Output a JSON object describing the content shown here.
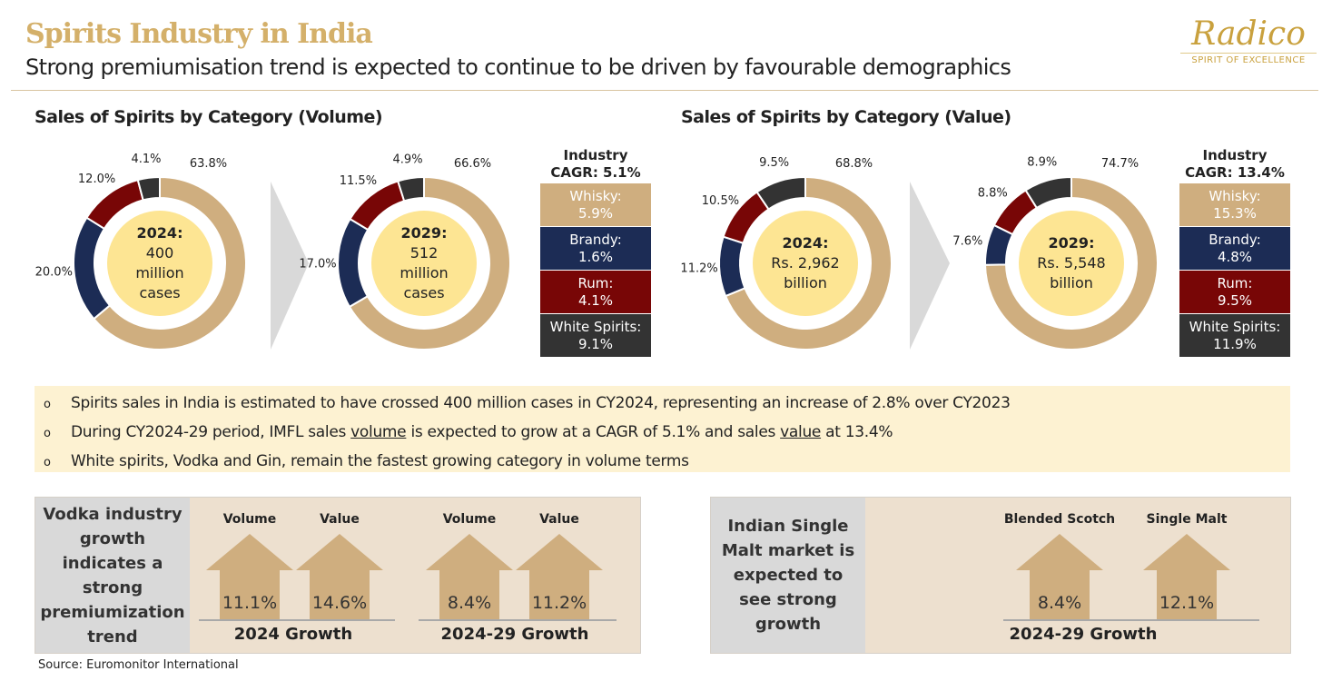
{
  "header": {
    "title": "Spirits Industry in India",
    "subtitle": "Strong premiumisation trend is expected to continue to be driven by favourable demographics",
    "logo_brand": "Radico",
    "logo_tagline": "SPIRIT OF EXCELLENCE"
  },
  "colors": {
    "whisky": "#cfae7f",
    "brandy": "#1c2c55",
    "rum": "#780606",
    "white_spirits": "#333333",
    "center": "#fde593",
    "accent": "#d4b06a"
  },
  "chart_data": [
    {
      "type": "pie",
      "variant": "donut",
      "title": "Sales of Spirits by Category (Volume)",
      "center": {
        "year": "2024:",
        "line1": "400",
        "line2": "million",
        "line3": "cases"
      },
      "categories": [
        "Whisky",
        "Brandy",
        "Rum",
        "White Spirits"
      ],
      "values": [
        63.8,
        20.0,
        12.0,
        4.1
      ],
      "labels": [
        "63.8%",
        "20.0%",
        "12.0%",
        "4.1%"
      ]
    },
    {
      "type": "pie",
      "variant": "donut",
      "title": "Sales of Spirits by Category (Volume)",
      "center": {
        "year": "2029:",
        "line1": "512",
        "line2": "million",
        "line3": "cases"
      },
      "categories": [
        "Whisky",
        "Brandy",
        "Rum",
        "White Spirits"
      ],
      "values": [
        66.6,
        17.0,
        11.5,
        4.9
      ],
      "labels": [
        "66.6%",
        "17.0%",
        "11.5%",
        "4.9%"
      ]
    },
    {
      "type": "pie",
      "variant": "donut",
      "title": "Sales of Spirits by Category (Value)",
      "center": {
        "year": "2024:",
        "line1": "Rs. 2,962",
        "line2": "billion",
        "line3": ""
      },
      "categories": [
        "Whisky",
        "Brandy",
        "Rum",
        "White Spirits"
      ],
      "values": [
        68.8,
        11.2,
        10.5,
        9.5
      ],
      "labels": [
        "68.8%",
        "11.2%",
        "10.5%",
        "9.5%"
      ]
    },
    {
      "type": "pie",
      "variant": "donut",
      "title": "Sales of Spirits by Category (Value)",
      "center": {
        "year": "2029:",
        "line1": "Rs. 5,548",
        "line2": "billion",
        "line3": ""
      },
      "categories": [
        "Whisky",
        "Brandy",
        "Rum",
        "White Spirits"
      ],
      "values": [
        74.7,
        7.6,
        8.8,
        8.9
      ],
      "labels": [
        "74.7%",
        "7.6%",
        "8.8%",
        "8.9%"
      ]
    }
  ],
  "volume": {
    "title": "Sales of Spirits by Category (Volume)",
    "legend": {
      "header1": "Industry",
      "header2": "CAGR: 5.1%",
      "items": [
        [
          "Whisky:",
          "5.9%"
        ],
        [
          "Brandy:",
          "1.6%"
        ],
        [
          "Rum:",
          "4.1%"
        ],
        [
          "White Spirits:",
          "9.1%"
        ]
      ]
    }
  },
  "value": {
    "title": "Sales of Spirits by Category (Value)",
    "legend": {
      "header1": "Industry",
      "header2": "CAGR: 13.4%",
      "items": [
        [
          "Whisky:",
          "15.3%"
        ],
        [
          "Brandy:",
          "4.8%"
        ],
        [
          "Rum:",
          "9.5%"
        ],
        [
          "White Spirits:",
          "11.9%"
        ]
      ]
    }
  },
  "bullets": {
    "b1": "Spirits sales in India is estimated to have crossed 400 million cases in CY2024, representing an increase of 2.8% over CY2023",
    "b2_a": "During CY2024-29 period, IMFL sales ",
    "b2_u1": "volume",
    "b2_b": " is expected to grow at a CAGR of 5.1% and sales ",
    "b2_u2": "value",
    "b2_c": " at 13.4%",
    "b3": "White spirits, Vodka and Gin, remain the fastest growing category in volume terms",
    "marker": "o"
  },
  "vodka": {
    "text": "Vodka industry growth indicates a strong premiumization trend",
    "groups": [
      {
        "label": "2024 Growth",
        "items": [
          {
            "label": "Volume",
            "value": "11.1%"
          },
          {
            "label": "Value",
            "value": "14.6%"
          }
        ]
      },
      {
        "label": "2024-29 Growth",
        "items": [
          {
            "label": "Volume",
            "value": "8.4%"
          },
          {
            "label": "Value",
            "value": "11.2%"
          }
        ]
      }
    ]
  },
  "malt": {
    "text": "Indian Single Malt market is expected to see strong growth",
    "group": {
      "label": "2024-29 Growth",
      "items": [
        {
          "label": "Blended Scotch",
          "value": "8.4%"
        },
        {
          "label": "Single Malt",
          "value": "12.1%"
        }
      ]
    }
  },
  "source": "Source: Euromonitor International"
}
